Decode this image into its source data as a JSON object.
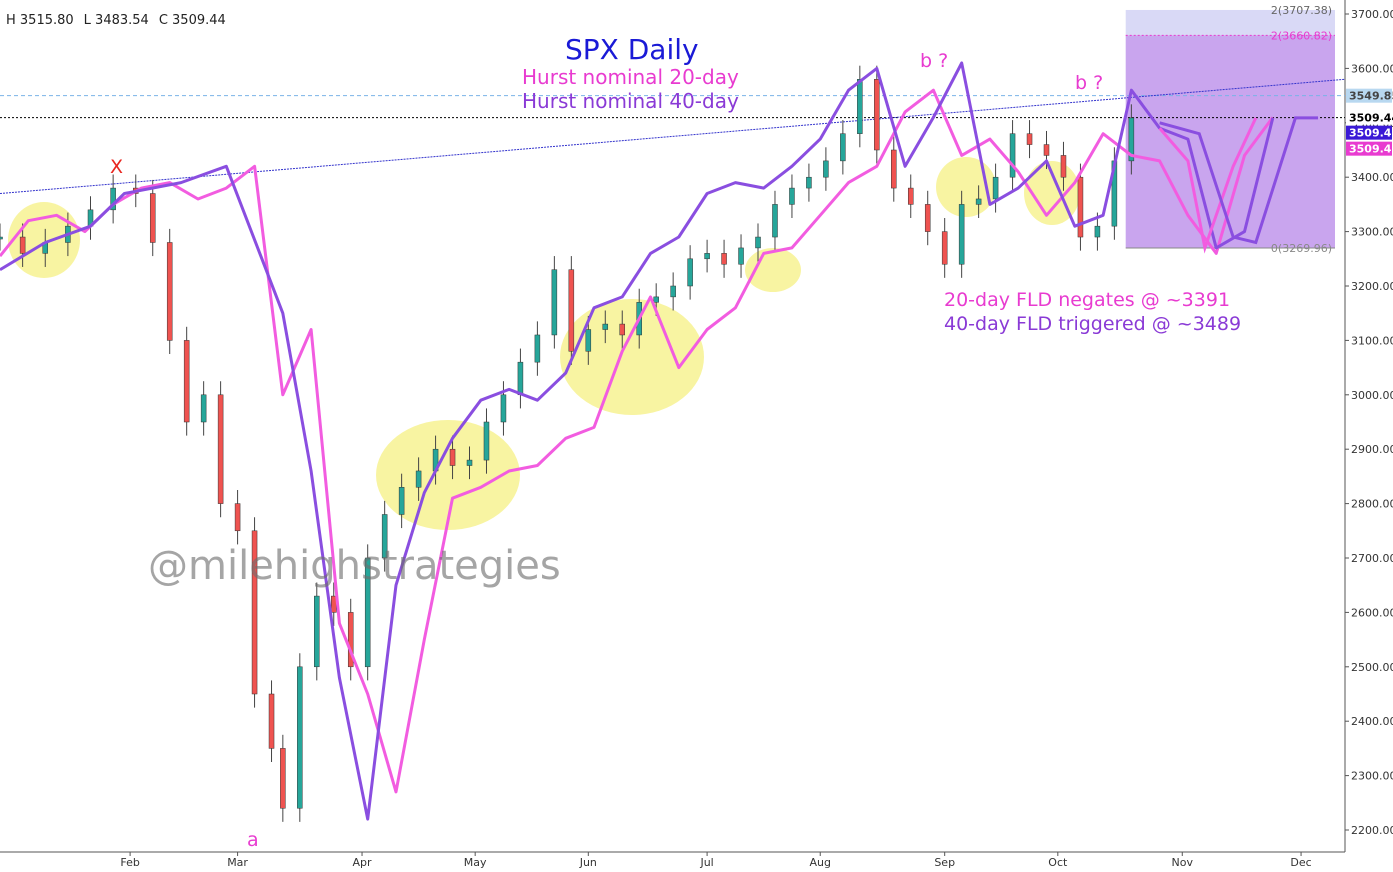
{
  "header": {
    "high": "H 3515.80",
    "low": "L 3483.54",
    "close": "C 3509.44"
  },
  "titles": {
    "title": "SPX Daily",
    "sub1": "Hurst nominal 20-day",
    "sub2": "Hurst nominal 40-day"
  },
  "annotations": {
    "note1": "20-day FLD negates @ ~3391",
    "note2": "40-day FLD triggered @ ~3489",
    "watermark": "@milehighstrategies",
    "x_mark": "X",
    "a_mark": "a",
    "b_mark1": "b ?",
    "b_mark2": "b ?"
  },
  "price_tags": {
    "upper_target": "2(3707.38)",
    "mid_target": "2(3660.82)",
    "base_target": "0(3269.96)",
    "dashed_level": "3549.85",
    "close1": "3509.44",
    "close2": "3509.44",
    "close3": "3509.44"
  },
  "colors": {
    "up": "#26a69a",
    "down": "#ef5350",
    "fld20": "#f25ce0",
    "fld40": "#8a4ee0",
    "trend": "#3333cc",
    "projection_box": "#c9a5ee",
    "projection_top": "#d9d9f6",
    "ellipse": "#f5f07a"
  },
  "chart_data": {
    "type": "candlestick",
    "title": "SPX Daily",
    "ylim": [
      2180,
      3720
    ],
    "y_ticks": [
      2200,
      2300,
      2400,
      2500,
      2600,
      2700,
      2800,
      2900,
      3000,
      3100,
      3200,
      3300,
      3400,
      3500,
      3600,
      3700
    ],
    "y_tick_labels": [
      "2200.00",
      "2300.00",
      "2400.00",
      "2500.00",
      "2600.00",
      "2700.00",
      "2800.00",
      "2900.00",
      "3000.00",
      "3100.00",
      "3200.00",
      "3300.00",
      "3400.00",
      "3500.00",
      "3600.00",
      "3700.00"
    ],
    "x_ticks": [
      "Feb",
      "Mar",
      "Apr",
      "May",
      "Jun",
      "Jul",
      "Aug",
      "Sep",
      "Oct",
      "Nov",
      "Dec"
    ],
    "month_days": [
      23,
      42,
      64,
      84,
      104,
      125,
      145,
      167,
      187,
      209,
      230
    ],
    "day_range": [
      0,
      236
    ],
    "series": [
      {
        "name": "Hurst nominal 20-day",
        "points": [
          [
            0,
            3255
          ],
          [
            5,
            3320
          ],
          [
            10,
            3330
          ],
          [
            15,
            3300
          ],
          [
            20,
            3350
          ],
          [
            25,
            3380
          ],
          [
            30,
            3390
          ],
          [
            35,
            3360
          ],
          [
            40,
            3380
          ],
          [
            45,
            3420
          ],
          [
            50,
            3000
          ],
          [
            55,
            3120
          ],
          [
            60,
            2580
          ],
          [
            65,
            2450
          ],
          [
            70,
            2270
          ],
          [
            75,
            2550
          ],
          [
            80,
            2810
          ],
          [
            85,
            2830
          ],
          [
            90,
            2860
          ],
          [
            95,
            2870
          ],
          [
            100,
            2920
          ],
          [
            105,
            2940
          ],
          [
            110,
            3080
          ],
          [
            115,
            3180
          ],
          [
            120,
            3050
          ],
          [
            125,
            3120
          ],
          [
            130,
            3160
          ],
          [
            135,
            3260
          ],
          [
            140,
            3270
          ],
          [
            145,
            3330
          ],
          [
            150,
            3390
          ],
          [
            155,
            3420
          ],
          [
            160,
            3520
          ],
          [
            165,
            3560
          ],
          [
            170,
            3440
          ],
          [
            175,
            3470
          ],
          [
            180,
            3410
          ],
          [
            185,
            3330
          ],
          [
            190,
            3390
          ],
          [
            195,
            3480
          ],
          [
            200,
            3440
          ],
          [
            205,
            3430
          ],
          [
            210,
            3330
          ],
          [
            215,
            3260
          ],
          [
            220,
            3440
          ],
          [
            225,
            3510
          ]
        ]
      },
      {
        "name": "Hurst nominal 40-day",
        "points": [
          [
            0,
            3230
          ],
          [
            8,
            3280
          ],
          [
            16,
            3310
          ],
          [
            22,
            3370
          ],
          [
            32,
            3390
          ],
          [
            40,
            3420
          ],
          [
            50,
            3150
          ],
          [
            55,
            2860
          ],
          [
            60,
            2480
          ],
          [
            65,
            2220
          ],
          [
            70,
            2650
          ],
          [
            75,
            2820
          ],
          [
            80,
            2920
          ],
          [
            85,
            2990
          ],
          [
            90,
            3010
          ],
          [
            95,
            2990
          ],
          [
            100,
            3040
          ],
          [
            105,
            3160
          ],
          [
            110,
            3180
          ],
          [
            115,
            3260
          ],
          [
            120,
            3290
          ],
          [
            125,
            3370
          ],
          [
            130,
            3390
          ],
          [
            135,
            3380
          ],
          [
            140,
            3420
          ],
          [
            145,
            3470
          ],
          [
            150,
            3560
          ],
          [
            155,
            3600
          ],
          [
            160,
            3420
          ],
          [
            165,
            3510
          ],
          [
            170,
            3610
          ],
          [
            175,
            3350
          ],
          [
            180,
            3380
          ],
          [
            185,
            3430
          ],
          [
            190,
            3310
          ],
          [
            195,
            3330
          ],
          [
            200,
            3560
          ],
          [
            205,
            3490
          ],
          [
            210,
            3470
          ],
          [
            215,
            3270
          ],
          [
            220,
            3300
          ],
          [
            225,
            3509
          ]
        ]
      }
    ],
    "candles_note": "approximate daily closes",
    "closes": [
      [
        0,
        3290
      ],
      [
        4,
        3260
      ],
      [
        8,
        3280
      ],
      [
        12,
        3310
      ],
      [
        16,
        3340
      ],
      [
        20,
        3380
      ],
      [
        24,
        3370
      ],
      [
        27,
        3280
      ],
      [
        30,
        3100
      ],
      [
        33,
        2950
      ],
      [
        36,
        3000
      ],
      [
        39,
        2800
      ],
      [
        42,
        2750
      ],
      [
        45,
        2450
      ],
      [
        48,
        2350
      ],
      [
        50,
        2240
      ],
      [
        53,
        2500
      ],
      [
        56,
        2630
      ],
      [
        59,
        2600
      ],
      [
        62,
        2500
      ],
      [
        65,
        2700
      ],
      [
        68,
        2780
      ],
      [
        71,
        2830
      ],
      [
        74,
        2860
      ],
      [
        77,
        2900
      ],
      [
        80,
        2870
      ],
      [
        83,
        2880
      ],
      [
        86,
        2950
      ],
      [
        89,
        3000
      ],
      [
        92,
        3060
      ],
      [
        95,
        3110
      ],
      [
        98,
        3230
      ],
      [
        101,
        3080
      ],
      [
        104,
        3120
      ],
      [
        107,
        3130
      ],
      [
        110,
        3110
      ],
      [
        113,
        3170
      ],
      [
        116,
        3180
      ],
      [
        119,
        3200
      ],
      [
        122,
        3250
      ],
      [
        125,
        3260
      ],
      [
        128,
        3240
      ],
      [
        131,
        3270
      ],
      [
        134,
        3290
      ],
      [
        137,
        3350
      ],
      [
        140,
        3380
      ],
      [
        143,
        3400
      ],
      [
        146,
        3430
      ],
      [
        149,
        3480
      ],
      [
        152,
        3580
      ],
      [
        155,
        3450
      ],
      [
        158,
        3380
      ],
      [
        161,
        3350
      ],
      [
        164,
        3300
      ],
      [
        167,
        3240
      ],
      [
        170,
        3350
      ],
      [
        173,
        3360
      ],
      [
        176,
        3400
      ],
      [
        179,
        3480
      ],
      [
        182,
        3460
      ],
      [
        185,
        3440
      ],
      [
        188,
        3400
      ],
      [
        191,
        3290
      ],
      [
        194,
        3310
      ],
      [
        197,
        3430
      ],
      [
        200,
        3509
      ]
    ],
    "trendline": {
      "from": [
        0,
        3370
      ],
      "to": [
        236,
        3580
      ]
    },
    "hlines": [
      3549.85,
      3509.44
    ],
    "projection": {
      "x_range": [
        199,
        236
      ],
      "y_range": [
        3269.96,
        3707.38
      ],
      "mid": 3660.82
    }
  }
}
